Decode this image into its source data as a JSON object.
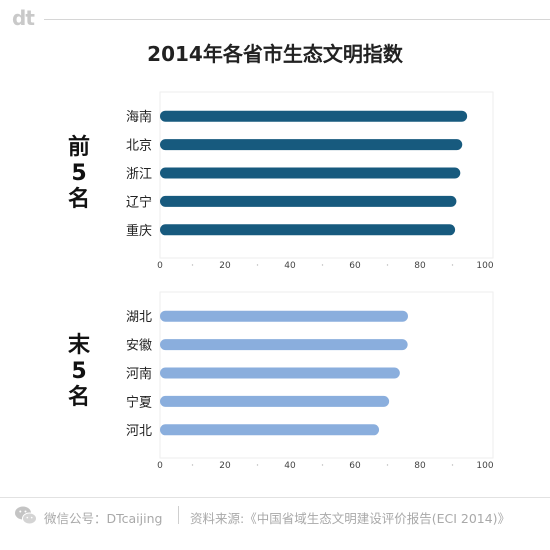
{
  "brand": {
    "logo": "dt"
  },
  "title": "2014年各省市生态文明指数",
  "colors": {
    "top_bars": "#175a7e",
    "bottom_bars": "#8aaedd"
  },
  "groups": {
    "top": {
      "label_chars": [
        "前",
        "5",
        "名"
      ]
    },
    "bottom": {
      "label_chars": [
        "末",
        "5",
        "名"
      ]
    }
  },
  "chart_data": [
    {
      "type": "bar",
      "orientation": "horizontal",
      "categories": [
        "海南",
        "北京",
        "浙江",
        "辽宁",
        "重庆"
      ],
      "values": [
        94.5,
        93.0,
        92.4,
        91.2,
        90.8
      ],
      "xlim": [
        0,
        100
      ],
      "xticks": [
        "0",
        "20",
        "40",
        "60",
        "80",
        "100"
      ],
      "grid": false
    },
    {
      "type": "bar",
      "orientation": "horizontal",
      "categories": [
        "湖北",
        "安徽",
        "河南",
        "宁夏",
        "河北"
      ],
      "values": [
        76.3,
        76.2,
        73.8,
        70.5,
        67.4
      ],
      "xlim": [
        0,
        100
      ],
      "xticks": [
        "0",
        "20",
        "40",
        "60",
        "80",
        "100"
      ],
      "grid": false
    }
  ],
  "footer": {
    "wechat": "微信公号：DTcaijing",
    "source": "资料来源:《中国省域生态文明建设评价报告(ECI 2014)》"
  }
}
